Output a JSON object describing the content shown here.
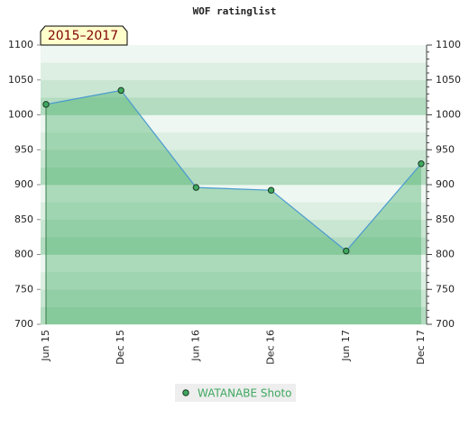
{
  "chart_data": {
    "type": "line",
    "title": "WOF ratinglist",
    "annotation": "2015–2017",
    "categories": [
      "Jun 15",
      "Dec 15",
      "Jun 16",
      "Dec 16",
      "Jun 17",
      "Dec 17"
    ],
    "series": [
      {
        "name": "WATANABE Shoto",
        "color": "#4a9ad0",
        "marker_color": "#3fa860",
        "values": [
          1015,
          1035,
          896,
          892,
          805,
          930
        ]
      }
    ],
    "area": true,
    "ylim": [
      700,
      1100
    ],
    "yticks": [
      700,
      750,
      800,
      850,
      900,
      950,
      1000,
      1050,
      1100
    ],
    "y2lim": [
      700,
      1100
    ],
    "y2ticks": [
      700,
      750,
      800,
      850,
      900,
      950,
      1000,
      1050,
      1100
    ]
  }
}
